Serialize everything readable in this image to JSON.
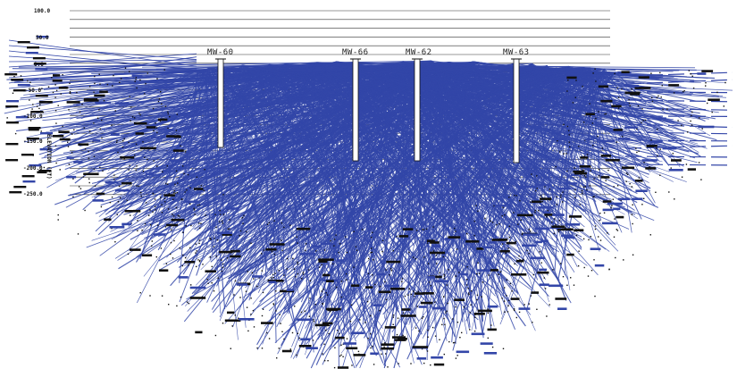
{
  "figure": {
    "type": "geologic cross-section fence diagram with well traces and radiating stratigraphic correlation lines",
    "colors": {
      "correlation_lines": "#3346a8",
      "grid_lines": "#333333",
      "well_casing": "#111111",
      "background": "#ffffff",
      "marker_ticks": "#111111"
    }
  },
  "axis": {
    "title": "ELEVATION (FT)",
    "ticks": [
      "100.0",
      "50.0",
      "0.0",
      "-50.0",
      "-100.0",
      "-150.0",
      "-200.0",
      "-250.0"
    ]
  },
  "wells": [
    {
      "name": "MW-60"
    },
    {
      "name": "MW-66"
    },
    {
      "name": "MW-62"
    },
    {
      "name": "MW-63"
    }
  ]
}
